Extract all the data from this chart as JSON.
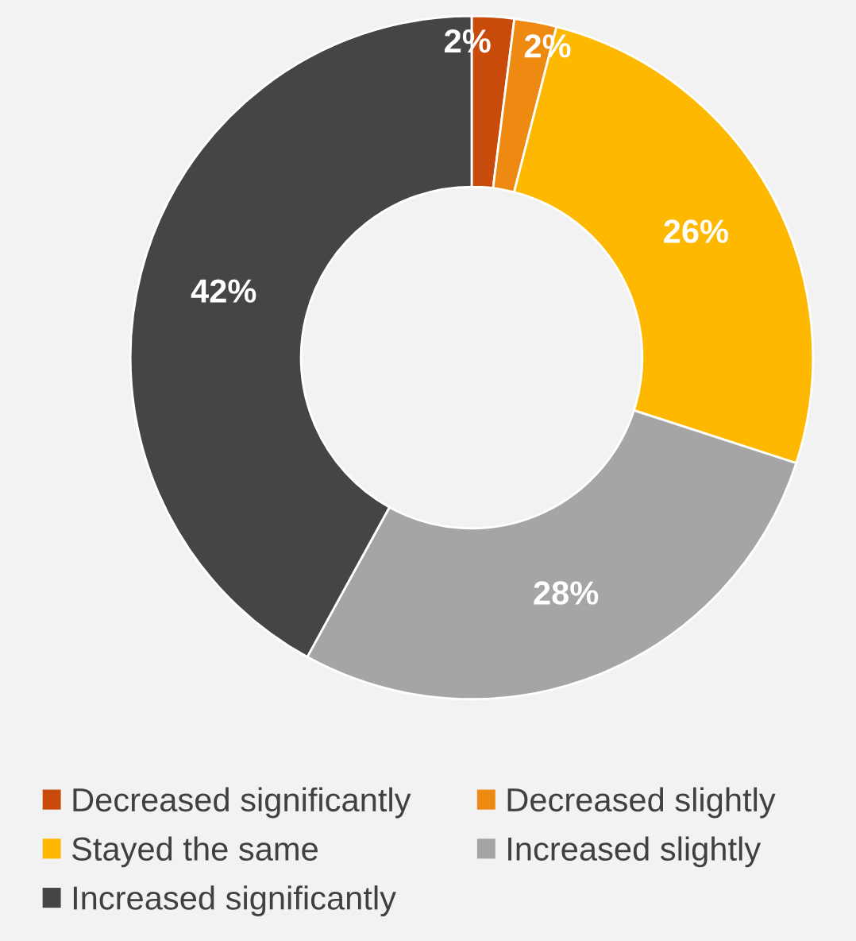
{
  "chart_data": {
    "type": "donut",
    "categories": [
      "Decreased significantly",
      "Decreased slightly",
      "Stayed the same",
      "Increased slightly",
      "Increased significantly"
    ],
    "values": [
      2,
      2,
      26,
      28,
      42
    ],
    "colors": [
      "#c84b0c",
      "#ee8a12",
      "#ffb800",
      "#a5a5a5",
      "#454545"
    ],
    "value_labels": [
      "2%",
      "2%",
      "26%",
      "28%",
      "42%"
    ],
    "legend": "bottom"
  }
}
